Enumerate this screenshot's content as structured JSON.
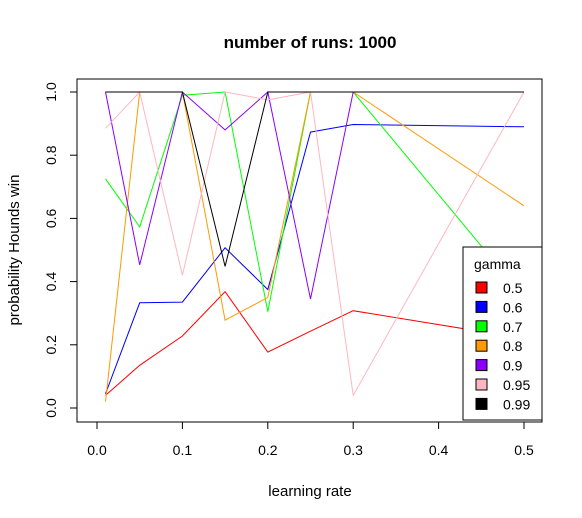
{
  "chart_data": {
    "type": "line",
    "title": "number of runs:  1000",
    "xlabel": "learning rate",
    "ylabel": "probability Hounds win",
    "xlim": [
      0.0,
      0.5
    ],
    "ylim": [
      0.0,
      1.0
    ],
    "x": [
      0.01,
      0.05,
      0.1,
      0.15,
      0.2,
      0.25,
      0.3,
      0.5
    ],
    "xticks": [
      0.0,
      0.1,
      0.2,
      0.3,
      0.4,
      0.5
    ],
    "xtick_labels": [
      "0.0",
      "0.1",
      "0.2",
      "0.3",
      "0.4",
      "0.5"
    ],
    "yticks": [
      0.0,
      0.2,
      0.4,
      0.6,
      0.8,
      1.0
    ],
    "ytick_labels": [
      "0.0",
      "0.2",
      "0.4",
      "0.6",
      "0.8",
      "1.0"
    ],
    "grid": false,
    "legend": {
      "title": "gamma",
      "position": "right"
    },
    "series": [
      {
        "name": "0.5",
        "color": "#ff0000",
        "values": [
          0.04,
          0.135,
          0.228,
          0.368,
          0.177,
          0.243,
          0.308,
          0.22
        ]
      },
      {
        "name": "0.6",
        "color": "#0000ff",
        "values": [
          0.045,
          0.333,
          0.335,
          0.507,
          0.375,
          0.873,
          0.897,
          0.89
        ]
      },
      {
        "name": "0.7",
        "color": "#00ff00",
        "values": [
          0.725,
          0.573,
          0.99,
          1.0,
          0.305,
          1.0,
          1.0,
          0.35
        ]
      },
      {
        "name": "0.8",
        "color": "#ff9900",
        "values": [
          0.02,
          1.0,
          1.0,
          0.278,
          0.35,
          1.0,
          1.0,
          0.64
        ]
      },
      {
        "name": "0.9",
        "color": "#8a00ff",
        "values": [
          1.0,
          0.453,
          1.0,
          0.88,
          1.0,
          0.345,
          1.0,
          1.0
        ]
      },
      {
        "name": "0.95",
        "color": "#ffb6c1",
        "values": [
          0.885,
          1.0,
          0.42,
          1.0,
          0.975,
          1.0,
          0.04,
          1.0
        ]
      },
      {
        "name": "0.99",
        "color": "#000000",
        "values": [
          1.0,
          1.0,
          1.0,
          0.448,
          1.0,
          1.0,
          1.0,
          1.0
        ]
      }
    ]
  }
}
